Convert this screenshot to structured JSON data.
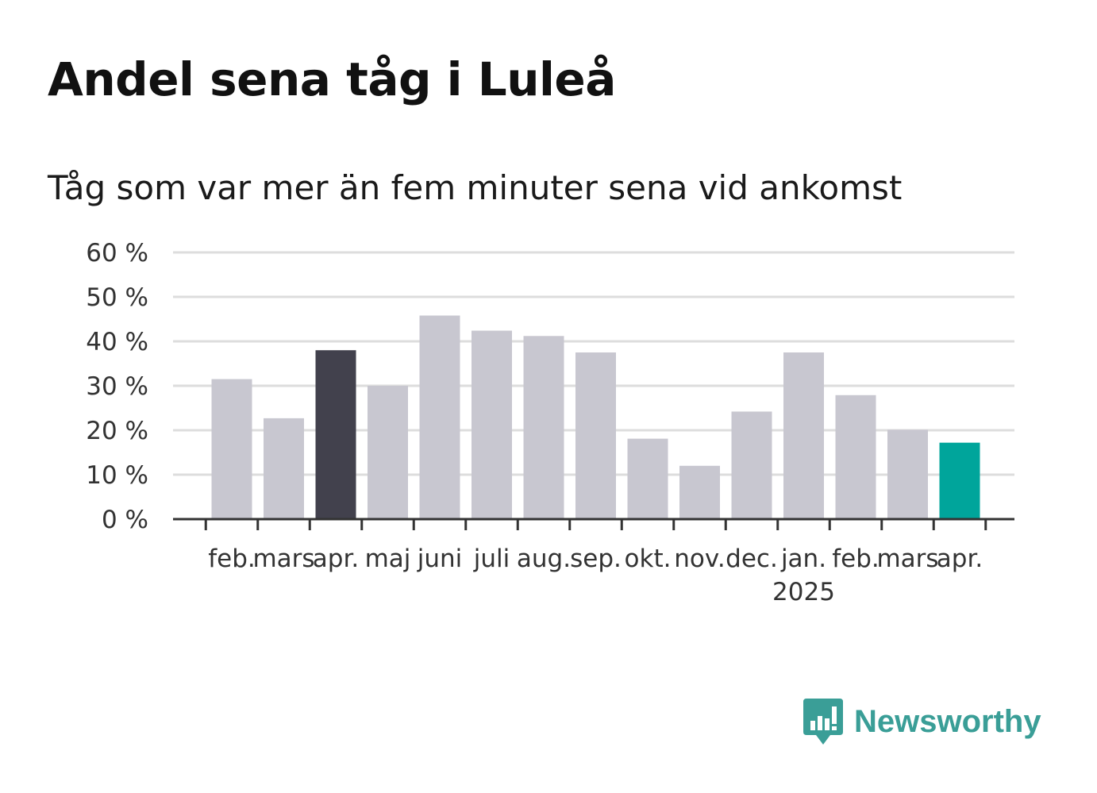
{
  "title": "Andel sena tåg i Luleå",
  "subtitle": "Tåg som var mer än fem minuter sena vid ankomst",
  "brand": {
    "name": "Newsworthy",
    "color": "#3a9e97",
    "icon": "newsworthy-logo-icon"
  },
  "colors": {
    "default_bar": "#c8c7d0",
    "highlight_bar": "#42414d",
    "latest_bar": "#00a59b",
    "grid": "#dddddd",
    "axis": "#333333"
  },
  "chart_data": {
    "type": "bar",
    "title": "Andel sena tåg i Luleå",
    "subtitle": "Tåg som var mer än fem minuter sena vid ankomst",
    "categories": [
      "feb.",
      "mars",
      "apr.",
      "maj",
      "juni",
      "juli",
      "aug.",
      "sep.",
      "okt.",
      "nov.",
      "dec.",
      "jan.",
      "feb.",
      "mars",
      "apr."
    ],
    "values": [
      31.5,
      22.7,
      38.0,
      30.0,
      45.8,
      42.4,
      41.2,
      37.5,
      18.1,
      12.0,
      24.2,
      37.5,
      27.9,
      20.1,
      17.2
    ],
    "bar_styles": [
      "default",
      "default",
      "highlight",
      "default",
      "default",
      "default",
      "default",
      "default",
      "default",
      "default",
      "default",
      "default",
      "default",
      "default",
      "latest"
    ],
    "ylim": [
      0,
      60
    ],
    "yticks": [
      0,
      10,
      20,
      30,
      40,
      50,
      60
    ],
    "ytick_labels": [
      "0 %",
      "10 %",
      "20 %",
      "30 %",
      "40 %",
      "50 %",
      "60 %"
    ],
    "year_markers": [
      {
        "index": 11,
        "label": "2025"
      }
    ],
    "grid": true,
    "xlabel": "",
    "ylabel": ""
  }
}
